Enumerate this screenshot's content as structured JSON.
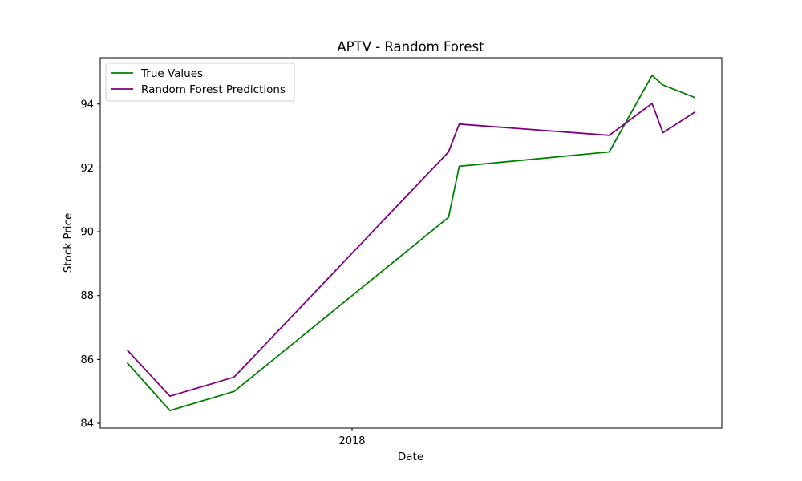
{
  "chart_data": {
    "type": "line",
    "title": "APTV - Random Forest",
    "xlabel": "Date",
    "ylabel": "Stock Price",
    "x_ticks": [
      {
        "label": "2018",
        "x": 21
      }
    ],
    "x": [
      0,
      4,
      10,
      30,
      31,
      45,
      49,
      50,
      53
    ],
    "xlim": [
      -2.5,
      55.5
    ],
    "ylim": [
      83.85,
      95.45
    ],
    "y_ticks": [
      84,
      86,
      88,
      90,
      92,
      94
    ],
    "grid": false,
    "legend_position": "top-left",
    "series": [
      {
        "name": "True Values",
        "color": "#008000",
        "values": [
          85.9,
          84.4,
          85.0,
          90.45,
          92.05,
          92.5,
          94.9,
          94.6,
          94.2
        ]
      },
      {
        "name": "Random Forest Predictions",
        "color": "#800080",
        "values": [
          86.3,
          84.85,
          85.45,
          92.5,
          93.37,
          93.02,
          94.02,
          93.1,
          93.75
        ]
      }
    ]
  }
}
